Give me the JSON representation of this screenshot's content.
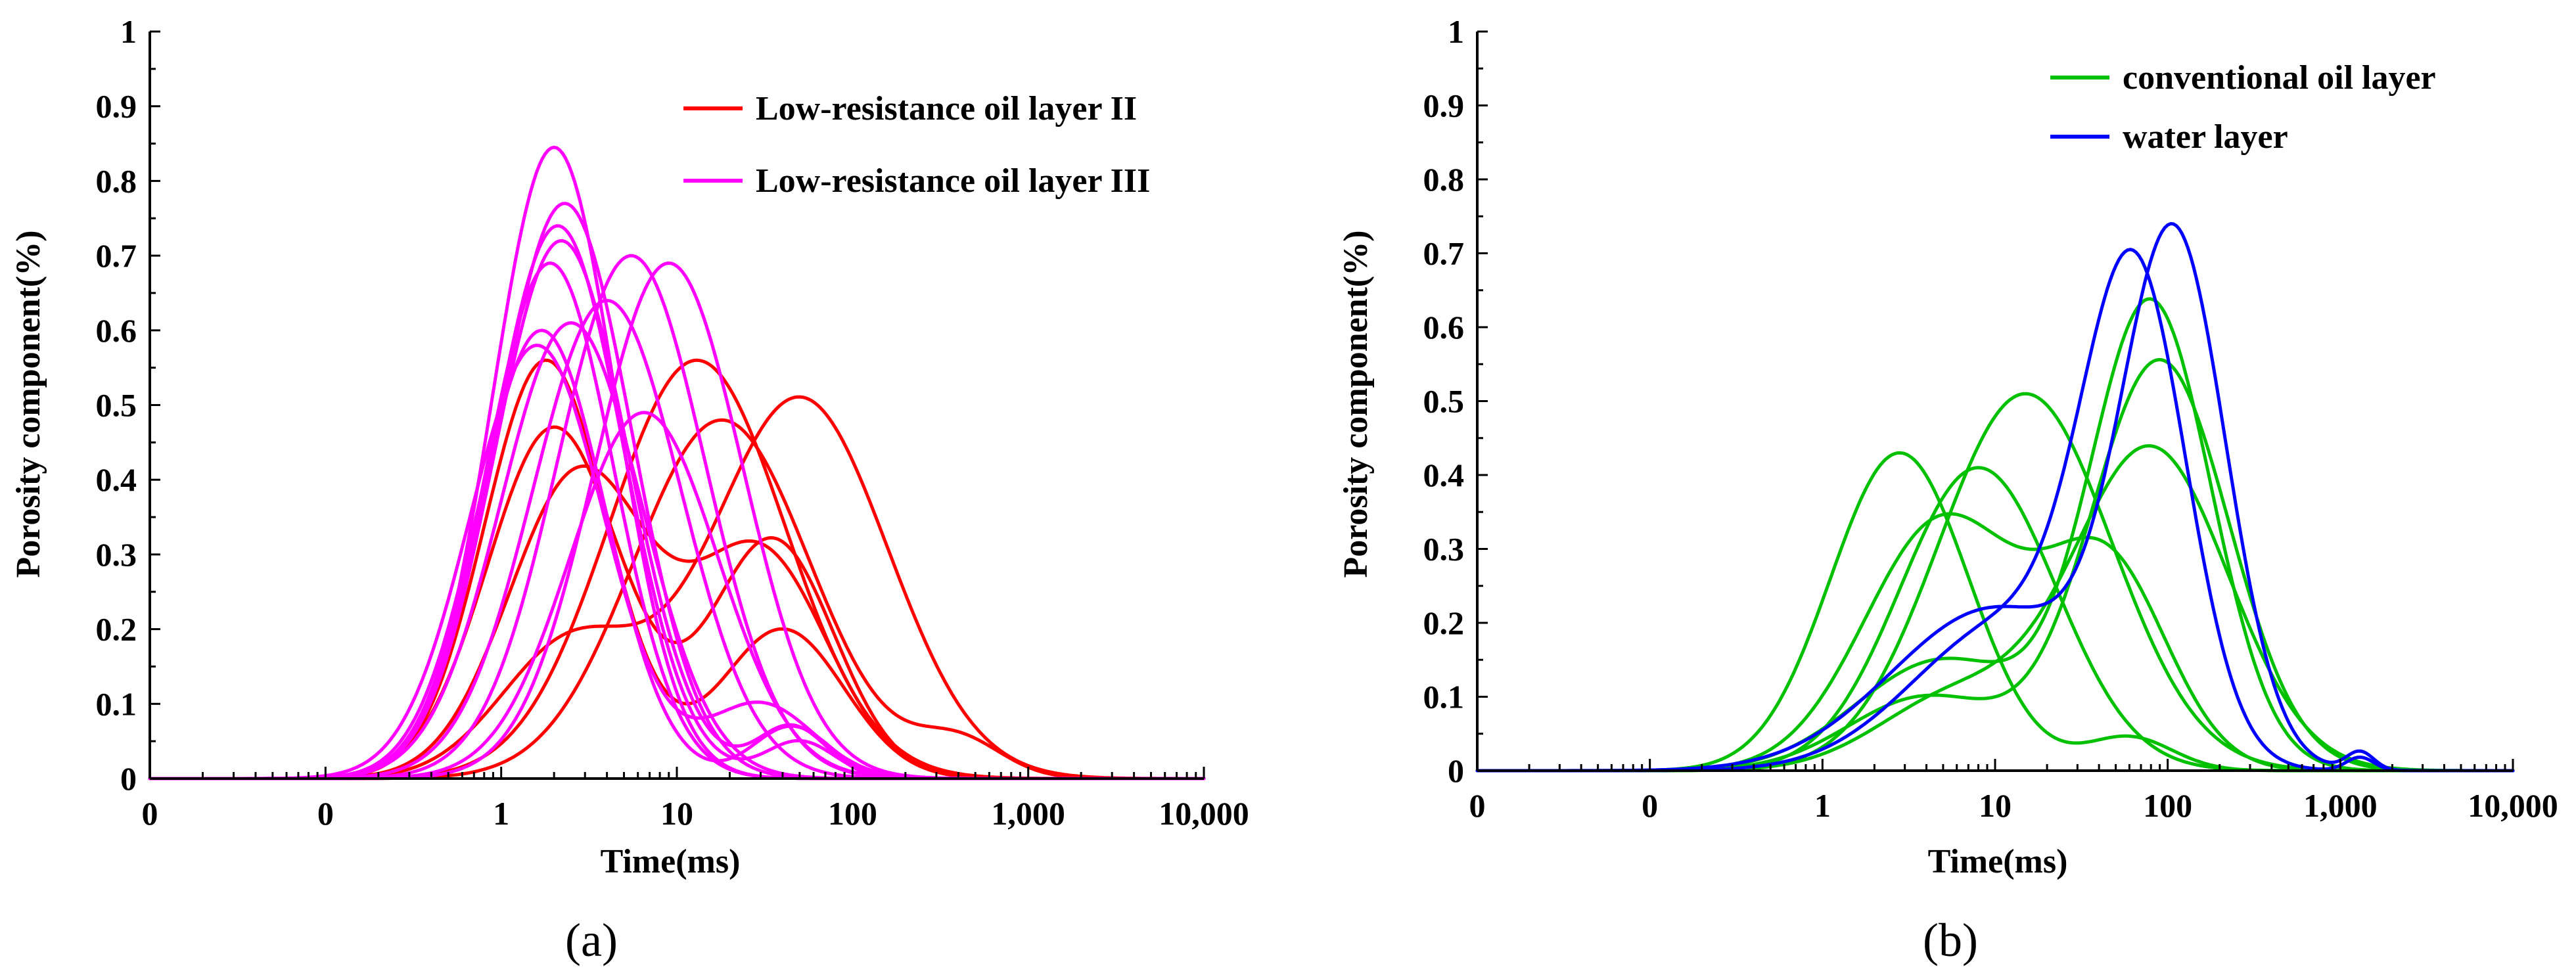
{
  "chart_data": [
    {
      "type": "line",
      "panel_label": "(a)",
      "xlabel": "Time(ms)",
      "ylabel": "Porosity component(%)",
      "x_scale": "log",
      "x_ticks": [
        "0",
        "0",
        "1",
        "10",
        "100",
        "1,000",
        "10,000"
      ],
      "y_ticks": [
        "0",
        "0.1",
        "0.2",
        "0.3",
        "0.4",
        "0.5",
        "0.6",
        "0.7",
        "0.8",
        "0.9",
        "1"
      ],
      "xlim": [
        0.01,
        10000
      ],
      "ylim": [
        0,
        1
      ],
      "legend_position": "top-right",
      "series": [
        {
          "name": "Low-resistance oil layer II",
          "color": "#ff0000",
          "show_legend": true,
          "components": [
            {
              "a": 0.56,
              "m": 1.8,
              "s": 0.35
            },
            {
              "a": 0.2,
              "m": 40,
              "s": 0.35
            }
          ]
        },
        {
          "name": "",
          "color": "#ff0000",
          "components": [
            {
              "a": 0.47,
              "m": 2.0,
              "s": 0.38
            },
            {
              "a": 0.32,
              "m": 35,
              "s": 0.35
            }
          ]
        },
        {
          "name": "",
          "color": "#ff0000",
          "components": [
            {
              "a": 0.41,
              "m": 2.8,
              "s": 0.4
            },
            {
              "a": 0.3,
              "m": 30,
              "s": 0.38
            }
          ]
        },
        {
          "name": "",
          "color": "#ff0000",
          "components": [
            {
              "a": 0.56,
              "m": 13,
              "s": 0.5
            }
          ]
        },
        {
          "name": "",
          "color": "#ff0000",
          "components": [
            {
              "a": 0.51,
              "m": 50,
              "s": 0.5
            },
            {
              "a": 0.18,
              "m": 2.5,
              "s": 0.4
            }
          ]
        },
        {
          "name": "",
          "color": "#ff0000",
          "components": [
            {
              "a": 0.48,
              "m": 18,
              "s": 0.5
            },
            {
              "a": 0.05,
              "m": 400,
              "s": 0.25
            }
          ]
        },
        {
          "name": "Low-resistance oil layer III",
          "color": "#ff00ff",
          "show_legend": true,
          "components": [
            {
              "a": 0.845,
              "m": 2.0,
              "s": 0.35
            }
          ]
        },
        {
          "name": "",
          "color": "#ff00ff",
          "components": [
            {
              "a": 0.77,
              "m": 2.3,
              "s": 0.38
            }
          ]
        },
        {
          "name": "",
          "color": "#ff00ff",
          "components": [
            {
              "a": 0.74,
              "m": 2.1,
              "s": 0.37
            },
            {
              "a": 0.05,
              "m": 50,
              "s": 0.2
            }
          ]
        },
        {
          "name": "",
          "color": "#ff00ff",
          "components": [
            {
              "a": 0.72,
              "m": 2.2,
              "s": 0.38
            },
            {
              "a": 0.07,
              "m": 45,
              "s": 0.2
            }
          ]
        },
        {
          "name": "",
          "color": "#ff00ff",
          "components": [
            {
              "a": 0.69,
              "m": 1.9,
              "s": 0.36
            }
          ]
        },
        {
          "name": "",
          "color": "#ff00ff",
          "components": [
            {
              "a": 0.6,
              "m": 1.7,
              "s": 0.36
            },
            {
              "a": 0.07,
              "m": 45,
              "s": 0.22
            }
          ]
        },
        {
          "name": "",
          "color": "#ff00ff",
          "components": [
            {
              "a": 0.61,
              "m": 2.5,
              "s": 0.4
            }
          ]
        },
        {
          "name": "",
          "color": "#ff00ff",
          "components": [
            {
              "a": 0.64,
              "m": 4,
              "s": 0.42
            }
          ]
        },
        {
          "name": "",
          "color": "#ff00ff",
          "components": [
            {
              "a": 0.7,
              "m": 5.5,
              "s": 0.42
            }
          ]
        },
        {
          "name": "",
          "color": "#ff00ff",
          "components": [
            {
              "a": 0.69,
              "m": 9,
              "s": 0.42
            }
          ]
        },
        {
          "name": "",
          "color": "#ff00ff",
          "components": [
            {
              "a": 0.49,
              "m": 6.5,
              "s": 0.42
            }
          ]
        },
        {
          "name": "",
          "color": "#ff00ff",
          "components": [
            {
              "a": 0.58,
              "m": 1.6,
              "s": 0.38
            },
            {
              "a": 0.1,
              "m": 30,
              "s": 0.3
            }
          ]
        }
      ]
    },
    {
      "type": "line",
      "panel_label": "(b)",
      "xlabel": "Time(ms)",
      "ylabel": "Porosity component(%)",
      "x_scale": "log",
      "x_ticks": [
        "0",
        "0",
        "1",
        "10",
        "100",
        "1,000",
        "10,000"
      ],
      "y_ticks": [
        "0",
        "0.1",
        "0.2",
        "0.3",
        "0.4",
        "0.5",
        "0.6",
        "0.7",
        "0.8",
        "0.9",
        "1"
      ],
      "xlim": [
        0.01,
        10000
      ],
      "ylim": [
        0,
        1
      ],
      "legend_position": "top-right",
      "series": [
        {
          "name": "conventional oil layer",
          "color": "#00c000",
          "show_legend": true,
          "components": [
            {
              "a": 0.43,
              "m": 2.8,
              "s": 0.4
            },
            {
              "a": 0.045,
              "m": 60,
              "s": 0.25
            }
          ]
        },
        {
          "name": "",
          "color": "#00c000",
          "components": [
            {
              "a": 0.34,
              "m": 5,
              "s": 0.45
            },
            {
              "a": 0.27,
              "m": 45,
              "s": 0.35
            }
          ]
        },
        {
          "name": "",
          "color": "#00c000",
          "components": [
            {
              "a": 0.41,
              "m": 8,
              "s": 0.45
            }
          ]
        },
        {
          "name": "",
          "color": "#00c000",
          "components": [
            {
              "a": 0.51,
              "m": 15,
              "s": 0.5
            }
          ]
        },
        {
          "name": "",
          "color": "#00c000",
          "components": [
            {
              "a": 0.63,
              "m": 80,
              "s": 0.35
            },
            {
              "a": 0.15,
              "m": 5,
              "s": 0.5
            }
          ]
        },
        {
          "name": "",
          "color": "#00c000",
          "components": [
            {
              "a": 0.555,
              "m": 90,
              "s": 0.4
            },
            {
              "a": 0.1,
              "m": 4,
              "s": 0.45
            }
          ]
        },
        {
          "name": "",
          "color": "#00c000",
          "components": [
            {
              "a": 0.435,
              "m": 80,
              "s": 0.45
            },
            {
              "a": 0.1,
              "m": 6,
              "s": 0.45
            }
          ]
        },
        {
          "name": "water layer",
          "color": "#0000ff",
          "show_legend": true,
          "components": [
            {
              "a": 0.69,
              "m": 110,
              "s": 0.3
            },
            {
              "a": 0.22,
              "m": 10,
              "s": 0.6
            },
            {
              "a": 0.025,
              "m": 1300,
              "s": 0.08
            }
          ]
        },
        {
          "name": "",
          "color": "#0000ff",
          "components": [
            {
              "a": 0.62,
              "m": 65,
              "s": 0.3
            },
            {
              "a": 0.2,
              "m": 12,
              "s": 0.55
            },
            {
              "a": 0.018,
              "m": 1300,
              "s": 0.08
            }
          ]
        }
      ]
    }
  ]
}
